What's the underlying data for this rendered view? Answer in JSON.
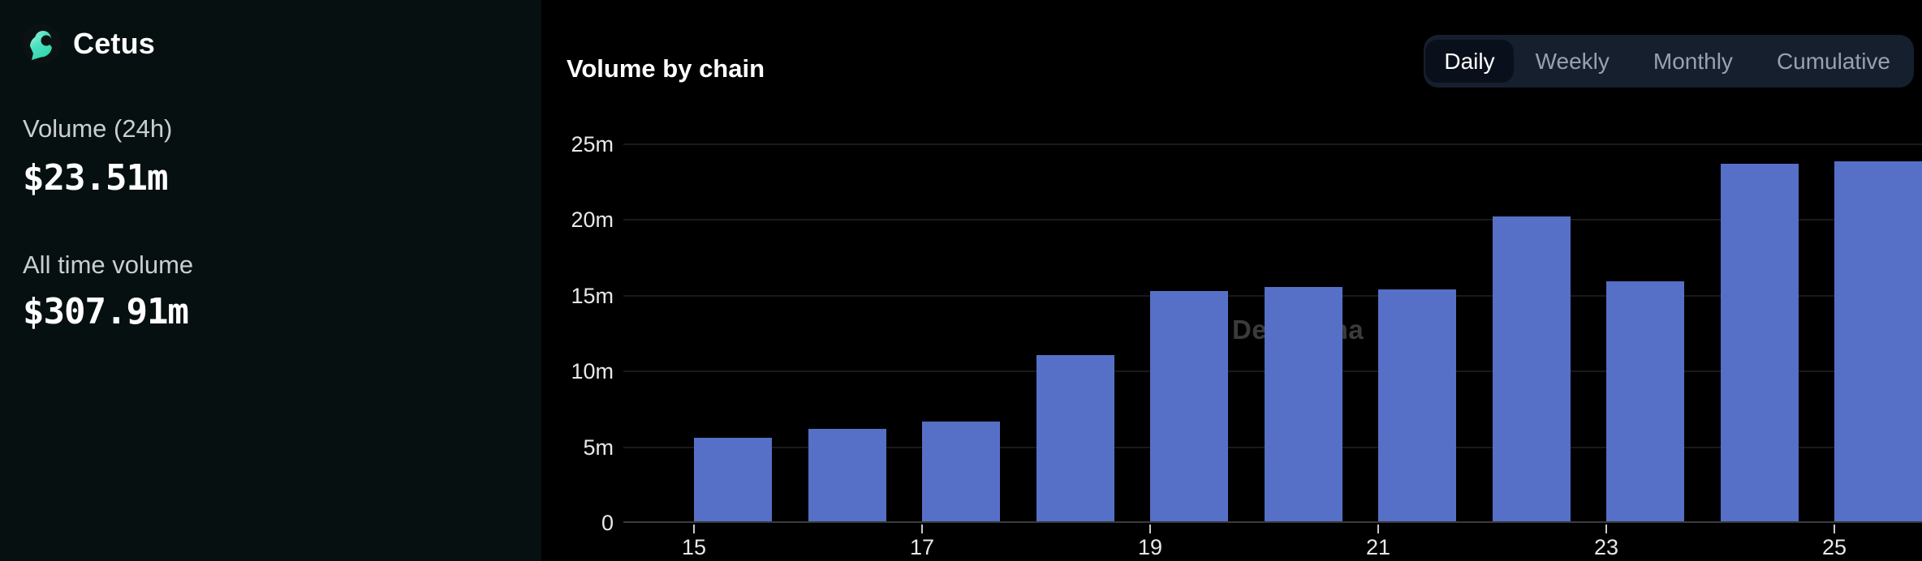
{
  "sidebar": {
    "brand": "Cetus",
    "logo_icon": "cetus-whale-icon",
    "stats": [
      {
        "label": "Volume (24h)",
        "value": "$23.51m"
      },
      {
        "label": "All time volume",
        "value": "$307.91m"
      }
    ]
  },
  "chart_header": {
    "title": "Volume by chain",
    "tabs": [
      "Daily",
      "Weekly",
      "Monthly",
      "Cumulative"
    ],
    "active_tab": "Daily",
    "active_index": 0
  },
  "chart_data": {
    "type": "bar",
    "title": "Volume by chain",
    "categories": [
      "15",
      "16",
      "17",
      "18",
      "19",
      "20",
      "21",
      "22",
      "23",
      "24",
      "25"
    ],
    "values": [
      5.5,
      6.1,
      6.6,
      11.0,
      15.2,
      15.45,
      15.3,
      20.15,
      15.85,
      23.6,
      23.75
    ],
    "value_unit": "m",
    "ylim": [
      0,
      25
    ],
    "y_ticks": [
      {
        "value": 0,
        "label": "0"
      },
      {
        "value": 5,
        "label": "5m"
      },
      {
        "value": 10,
        "label": "10m"
      },
      {
        "value": 15,
        "label": "15m"
      },
      {
        "value": 20,
        "label": "20m"
      },
      {
        "value": 25,
        "label": "25m"
      }
    ],
    "x_tick_labels": [
      "15",
      "17",
      "19",
      "21",
      "23",
      "25"
    ],
    "x_tick_indices": [
      0,
      2,
      4,
      6,
      8,
      10
    ],
    "grid": true,
    "legend": "none",
    "watermark": "DefiLlama"
  },
  "colors": {
    "sidebar_bg": "#071010",
    "chart_bg": "#000000",
    "bar": "#5570c6",
    "accent_teal": "#4be0c0",
    "tab_bar_bg": "#161f2d",
    "active_tab_bg": "#0a101b"
  }
}
